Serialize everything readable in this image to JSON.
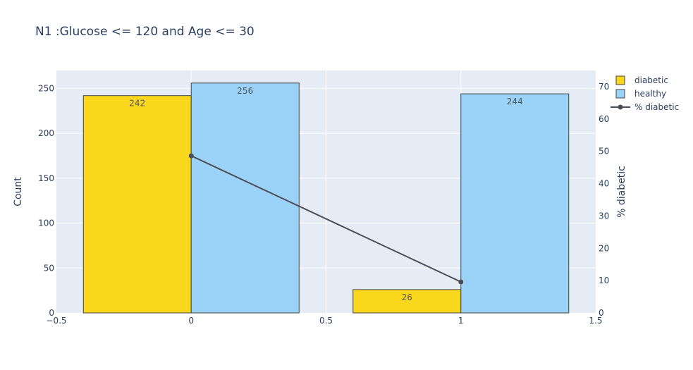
{
  "chart_data": {
    "type": "bar",
    "title": "N1 :Glucose <= 120 and Age <= 30",
    "x": [
      0,
      1
    ],
    "xlim": [
      -0.5,
      1.5
    ],
    "xticks": [
      -0.5,
      0,
      0.5,
      1,
      1.5
    ],
    "xtick_labels": [
      "−0.5",
      "0",
      "0.5",
      "1",
      "1.5"
    ],
    "ylabel": "Count",
    "ylim": [
      0,
      270
    ],
    "yticks": [
      0,
      50,
      100,
      150,
      200,
      250
    ],
    "y2label": "% diabetic",
    "y2lim": [
      0,
      75
    ],
    "y2ticks": [
      0,
      10,
      20,
      30,
      40,
      50,
      60,
      70
    ],
    "series": [
      {
        "name": "diabetic",
        "kind": "bar",
        "color": "#f9d71c",
        "values": [
          242,
          26
        ]
      },
      {
        "name": "healthy",
        "kind": "bar",
        "color": "#9ad3f7",
        "values": [
          256,
          244
        ]
      },
      {
        "name": "% diabetic",
        "kind": "line",
        "axis": "y2",
        "color": "#4a4f5a",
        "values": [
          48.6,
          9.6
        ]
      }
    ],
    "grid": true,
    "legend": "top-right"
  }
}
